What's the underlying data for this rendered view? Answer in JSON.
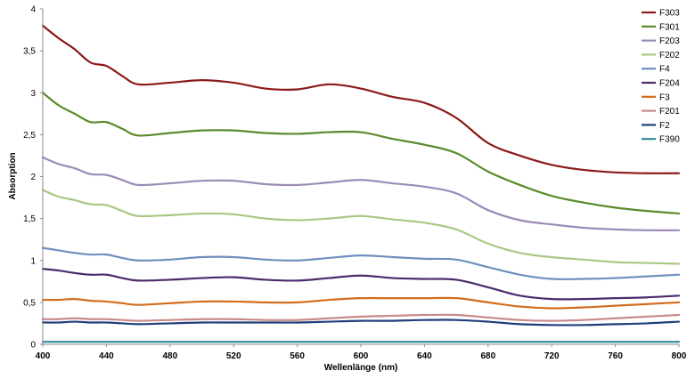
{
  "chart_data": {
    "type": "line",
    "xlabel": "Wellenlänge (nm)",
    "ylabel": "Absorption",
    "xlim": [
      400,
      800
    ],
    "ylim": [
      0,
      4
    ],
    "x_ticks": [
      400,
      440,
      480,
      520,
      560,
      600,
      640,
      680,
      720,
      760,
      800
    ],
    "y_ticks": [
      {
        "value": 0,
        "label": "0"
      },
      {
        "value": 0.5,
        "label": "0,5"
      },
      {
        "value": 1,
        "label": "1"
      },
      {
        "value": 1.5,
        "label": "1,5"
      },
      {
        "value": 2,
        "label": "2"
      },
      {
        "value": 2.5,
        "label": "2,5"
      },
      {
        "value": 3,
        "label": "3"
      },
      {
        "value": 3.5,
        "label": "3,5"
      },
      {
        "value": 4,
        "label": "4"
      }
    ],
    "grid": false,
    "legend_position": "top-right",
    "x": [
      400,
      410,
      420,
      430,
      440,
      450,
      460,
      480,
      500,
      520,
      540,
      560,
      580,
      600,
      620,
      640,
      660,
      680,
      700,
      720,
      740,
      760,
      780,
      800
    ],
    "series": [
      {
        "name": "F303",
        "color": "#8b1a1a",
        "values": [
          3.8,
          3.65,
          3.52,
          3.36,
          3.32,
          3.2,
          3.1,
          3.12,
          3.15,
          3.12,
          3.05,
          3.04,
          3.1,
          3.05,
          2.95,
          2.88,
          2.7,
          2.4,
          2.25,
          2.14,
          2.08,
          2.05,
          2.04,
          2.04
        ]
      },
      {
        "name": "F301",
        "color": "#5b8a2a",
        "values": [
          3.0,
          2.85,
          2.75,
          2.65,
          2.65,
          2.57,
          2.49,
          2.52,
          2.55,
          2.55,
          2.52,
          2.51,
          2.53,
          2.53,
          2.45,
          2.38,
          2.28,
          2.06,
          1.9,
          1.77,
          1.69,
          1.63,
          1.59,
          1.56
        ]
      },
      {
        "name": "F203",
        "color": "#9b8bb5",
        "values": [
          2.23,
          2.15,
          2.1,
          2.03,
          2.02,
          1.96,
          1.9,
          1.92,
          1.95,
          1.95,
          1.91,
          1.9,
          1.93,
          1.96,
          1.92,
          1.88,
          1.8,
          1.6,
          1.48,
          1.43,
          1.39,
          1.37,
          1.36,
          1.36
        ]
      },
      {
        "name": "F202",
        "color": "#a8c882",
        "values": [
          1.84,
          1.76,
          1.72,
          1.67,
          1.66,
          1.59,
          1.53,
          1.54,
          1.56,
          1.55,
          1.5,
          1.48,
          1.5,
          1.53,
          1.49,
          1.45,
          1.37,
          1.2,
          1.09,
          1.04,
          1.01,
          0.98,
          0.97,
          0.96
        ]
      },
      {
        "name": "F4",
        "color": "#6f8fbf",
        "values": [
          1.15,
          1.12,
          1.09,
          1.07,
          1.07,
          1.03,
          1.0,
          1.01,
          1.04,
          1.04,
          1.01,
          1.0,
          1.03,
          1.06,
          1.04,
          1.02,
          1.01,
          0.92,
          0.83,
          0.78,
          0.78,
          0.79,
          0.81,
          0.83
        ]
      },
      {
        "name": "F204",
        "color": "#4b2a6b",
        "values": [
          0.9,
          0.88,
          0.85,
          0.83,
          0.83,
          0.79,
          0.76,
          0.77,
          0.79,
          0.8,
          0.77,
          0.76,
          0.79,
          0.82,
          0.79,
          0.78,
          0.77,
          0.68,
          0.58,
          0.54,
          0.54,
          0.55,
          0.56,
          0.58
        ]
      },
      {
        "name": "F3",
        "color": "#d26d1e",
        "values": [
          0.53,
          0.53,
          0.54,
          0.52,
          0.51,
          0.49,
          0.47,
          0.49,
          0.51,
          0.51,
          0.5,
          0.5,
          0.53,
          0.55,
          0.55,
          0.55,
          0.55,
          0.5,
          0.45,
          0.43,
          0.44,
          0.46,
          0.48,
          0.5
        ]
      },
      {
        "name": "F201",
        "color": "#c98a8a",
        "values": [
          0.3,
          0.3,
          0.31,
          0.3,
          0.3,
          0.29,
          0.28,
          0.29,
          0.3,
          0.3,
          0.29,
          0.29,
          0.31,
          0.33,
          0.34,
          0.35,
          0.35,
          0.32,
          0.29,
          0.28,
          0.29,
          0.31,
          0.33,
          0.35
        ]
      },
      {
        "name": "F2",
        "color": "#1f3f7a",
        "values": [
          0.26,
          0.26,
          0.27,
          0.26,
          0.26,
          0.25,
          0.24,
          0.25,
          0.26,
          0.26,
          0.26,
          0.26,
          0.27,
          0.28,
          0.28,
          0.29,
          0.29,
          0.27,
          0.24,
          0.23,
          0.23,
          0.24,
          0.25,
          0.27
        ]
      },
      {
        "name": "F390",
        "color": "#2e8a9a",
        "values": [
          0.03,
          0.03,
          0.03,
          0.03,
          0.03,
          0.03,
          0.03,
          0.03,
          0.03,
          0.03,
          0.03,
          0.03,
          0.03,
          0.03,
          0.03,
          0.03,
          0.03,
          0.03,
          0.03,
          0.03,
          0.03,
          0.03,
          0.03,
          0.03
        ]
      }
    ]
  }
}
